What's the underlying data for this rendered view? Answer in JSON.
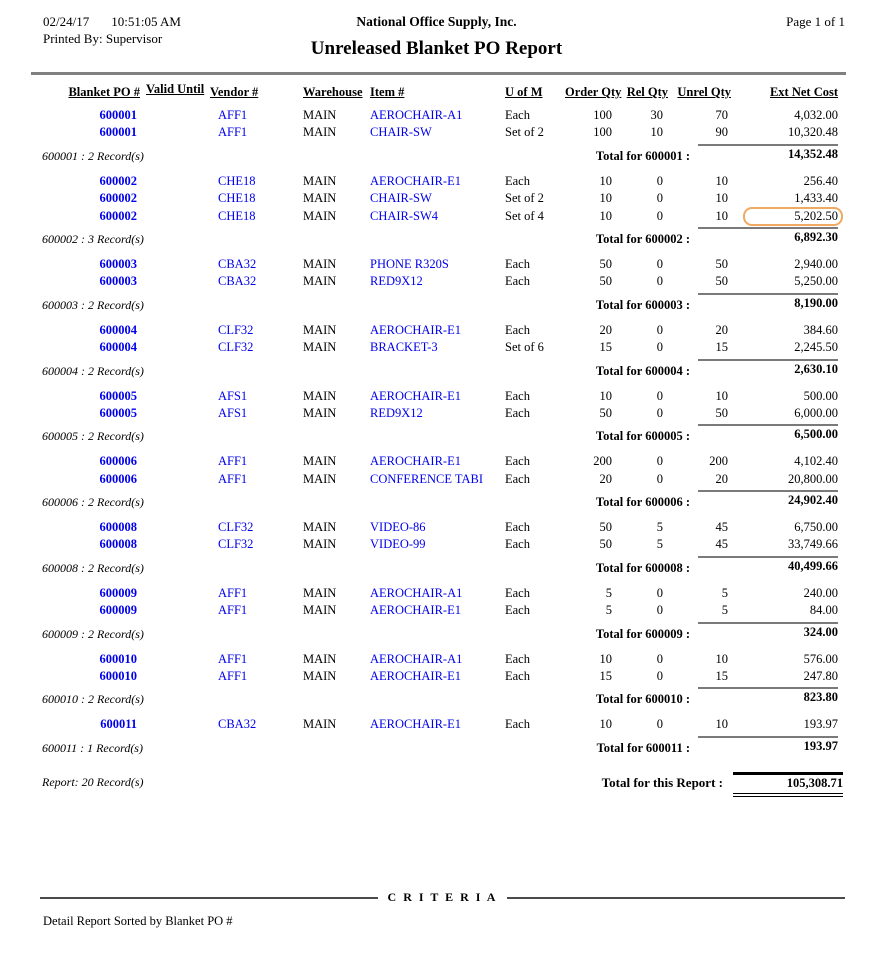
{
  "header": {
    "date": "02/24/17",
    "time": "10:51:05 AM",
    "printed_by": "Printed By: Supervisor",
    "company": "National Office Supply, Inc.",
    "title": "Unreleased Blanket PO Report",
    "page": "Page 1 of  1"
  },
  "columns": [
    "Blanket PO #",
    "Valid Until",
    "Vendor #",
    "Warehouse",
    "Item #",
    "U of M",
    "Order Qty",
    "Rel Qty",
    "Unrel Qty",
    "Ext Net Cost"
  ],
  "groups": [
    {
      "record_label": "600001 : 2 Record(s)",
      "total_label": "Total for 600001 :",
      "total_value": "14,352.48",
      "rows": [
        {
          "po": "600001",
          "valid": "",
          "vendor": "AFF1",
          "wh": "MAIN",
          "item": "AEROCHAIR-A1",
          "uom": "Each",
          "oqty": "100",
          "rqty": "30",
          "uqty": "70",
          "ext": "4,032.00"
        },
        {
          "po": "600001",
          "valid": "",
          "vendor": "AFF1",
          "wh": "MAIN",
          "item": "CHAIR-SW",
          "uom": "Set of 2",
          "oqty": "100",
          "rqty": "10",
          "uqty": "90",
          "ext": "10,320.48"
        }
      ]
    },
    {
      "record_label": "600002 : 3 Record(s)",
      "total_label": "Total for 600002 :",
      "total_value": "6,892.30",
      "rows": [
        {
          "po": "600002",
          "valid": "",
          "vendor": "CHE18",
          "wh": "MAIN",
          "item": "AEROCHAIR-E1",
          "uom": "Each",
          "oqty": "10",
          "rqty": "0",
          "uqty": "10",
          "ext": "256.40"
        },
        {
          "po": "600002",
          "valid": "",
          "vendor": "CHE18",
          "wh": "MAIN",
          "item": "CHAIR-SW",
          "uom": "Set of 2",
          "oqty": "10",
          "rqty": "0",
          "uqty": "10",
          "ext": "1,433.40"
        },
        {
          "po": "600002",
          "valid": "",
          "vendor": "CHE18",
          "wh": "MAIN",
          "item": "CHAIR-SW4",
          "uom": "Set of 4",
          "oqty": "10",
          "rqty": "0",
          "uqty": "10",
          "ext": "5,202.50",
          "highlighted": true
        }
      ]
    },
    {
      "record_label": "600003 : 2 Record(s)",
      "total_label": "Total for 600003 :",
      "total_value": "8,190.00",
      "rows": [
        {
          "po": "600003",
          "valid": "",
          "vendor": "CBA32",
          "wh": "MAIN",
          "item": "PHONE R320S",
          "uom": "Each",
          "oqty": "50",
          "rqty": "0",
          "uqty": "50",
          "ext": "2,940.00"
        },
        {
          "po": "600003",
          "valid": "",
          "vendor": "CBA32",
          "wh": "MAIN",
          "item": "RED9X12",
          "uom": "Each",
          "oqty": "50",
          "rqty": "0",
          "uqty": "50",
          "ext": "5,250.00"
        }
      ]
    },
    {
      "record_label": "600004 : 2 Record(s)",
      "total_label": "Total for 600004 :",
      "total_value": "2,630.10",
      "rows": [
        {
          "po": "600004",
          "valid": "",
          "vendor": "CLF32",
          "wh": "MAIN",
          "item": "AEROCHAIR-E1",
          "uom": "Each",
          "oqty": "20",
          "rqty": "0",
          "uqty": "20",
          "ext": "384.60"
        },
        {
          "po": "600004",
          "valid": "",
          "vendor": "CLF32",
          "wh": "MAIN",
          "item": "BRACKET-3",
          "uom": "Set of 6",
          "oqty": "15",
          "rqty": "0",
          "uqty": "15",
          "ext": "2,245.50"
        }
      ]
    },
    {
      "record_label": "600005 : 2 Record(s)",
      "total_label": "Total for 600005 :",
      "total_value": "6,500.00",
      "rows": [
        {
          "po": "600005",
          "valid": "",
          "vendor": "AFS1",
          "wh": "MAIN",
          "item": "AEROCHAIR-E1",
          "uom": "Each",
          "oqty": "10",
          "rqty": "0",
          "uqty": "10",
          "ext": "500.00"
        },
        {
          "po": "600005",
          "valid": "",
          "vendor": "AFS1",
          "wh": "MAIN",
          "item": "RED9X12",
          "uom": "Each",
          "oqty": "50",
          "rqty": "0",
          "uqty": "50",
          "ext": "6,000.00"
        }
      ]
    },
    {
      "record_label": "600006 : 2 Record(s)",
      "total_label": "Total for 600006 :",
      "total_value": "24,902.40",
      "rows": [
        {
          "po": "600006",
          "valid": "",
          "vendor": "AFF1",
          "wh": "MAIN",
          "item": "AEROCHAIR-E1",
          "uom": "Each",
          "oqty": "200",
          "rqty": "0",
          "uqty": "200",
          "ext": "4,102.40"
        },
        {
          "po": "600006",
          "valid": "",
          "vendor": "AFF1",
          "wh": "MAIN",
          "item": "CONFERENCE TABI",
          "uom": "Each",
          "oqty": "20",
          "rqty": "0",
          "uqty": "20",
          "ext": "20,800.00"
        }
      ]
    },
    {
      "record_label": "600008 : 2 Record(s)",
      "total_label": "Total for 600008 :",
      "total_value": "40,499.66",
      "rows": [
        {
          "po": "600008",
          "valid": "",
          "vendor": "CLF32",
          "wh": "MAIN",
          "item": "VIDEO-86",
          "uom": "Each",
          "oqty": "50",
          "rqty": "5",
          "uqty": "45",
          "ext": "6,750.00"
        },
        {
          "po": "600008",
          "valid": "",
          "vendor": "CLF32",
          "wh": "MAIN",
          "item": "VIDEO-99",
          "uom": "Each",
          "oqty": "50",
          "rqty": "5",
          "uqty": "45",
          "ext": "33,749.66"
        }
      ]
    },
    {
      "record_label": "600009 : 2 Record(s)",
      "total_label": "Total for 600009 :",
      "total_value": "324.00",
      "rows": [
        {
          "po": "600009",
          "valid": "",
          "vendor": "AFF1",
          "wh": "MAIN",
          "item": "AEROCHAIR-A1",
          "uom": "Each",
          "oqty": "5",
          "rqty": "0",
          "uqty": "5",
          "ext": "240.00"
        },
        {
          "po": "600009",
          "valid": "",
          "vendor": "AFF1",
          "wh": "MAIN",
          "item": "AEROCHAIR-E1",
          "uom": "Each",
          "oqty": "5",
          "rqty": "0",
          "uqty": "5",
          "ext": "84.00"
        }
      ]
    },
    {
      "record_label": "600010 : 2 Record(s)",
      "total_label": "Total for 600010 :",
      "total_value": "823.80",
      "rows": [
        {
          "po": "600010",
          "valid": "",
          "vendor": "AFF1",
          "wh": "MAIN",
          "item": "AEROCHAIR-A1",
          "uom": "Each",
          "oqty": "10",
          "rqty": "0",
          "uqty": "10",
          "ext": "576.00"
        },
        {
          "po": "600010",
          "valid": "",
          "vendor": "AFF1",
          "wh": "MAIN",
          "item": "AEROCHAIR-E1",
          "uom": "Each",
          "oqty": "15",
          "rqty": "0",
          "uqty": "15",
          "ext": "247.80"
        }
      ]
    },
    {
      "record_label": "600011 : 1 Record(s)",
      "total_label": "Total for 600011 :",
      "total_value": "193.97",
      "rows": [
        {
          "po": "600011",
          "valid": "",
          "vendor": "CBA32",
          "wh": "MAIN",
          "item": "AEROCHAIR-E1",
          "uom": "Each",
          "oqty": "10",
          "rqty": "0",
          "uqty": "10",
          "ext": "193.97"
        }
      ]
    }
  ],
  "report_footer": {
    "record_label": "Report: 20 Record(s)",
    "total_label": "Total for this Report :",
    "total_value": "105,308.71"
  },
  "criteria": {
    "heading": "C R I T E R I A",
    "sorted_by": "Detail Report Sorted by Blanket PO #"
  },
  "colors": {
    "link_blue": "#0000ee",
    "rule_gray": "#808080",
    "highlight_orange": "#efa963"
  }
}
